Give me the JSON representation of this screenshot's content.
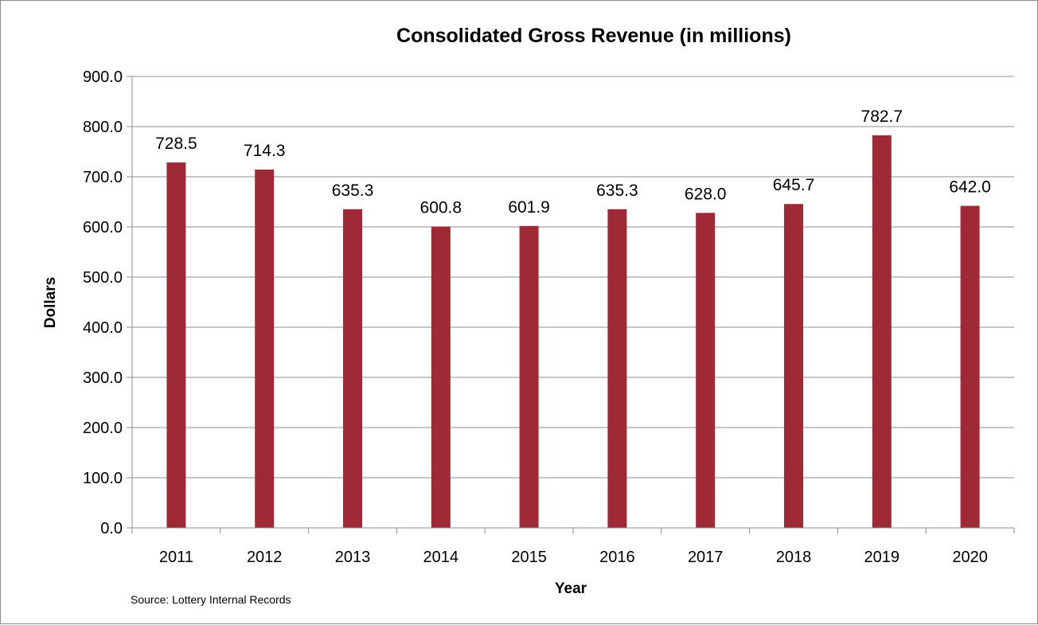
{
  "chart_data": {
    "type": "bar",
    "title": "Consolidated Gross Revenue (in millions)",
    "xlabel": "Year",
    "ylabel": "Dollars",
    "categories": [
      "2011",
      "2012",
      "2013",
      "2014",
      "2015",
      "2016",
      "2017",
      "2018",
      "2019",
      "2020"
    ],
    "values": [
      728.5,
      714.3,
      635.3,
      600.8,
      601.9,
      635.3,
      628.0,
      645.7,
      782.7,
      642.0
    ],
    "data_labels": [
      "728.5",
      "714.3",
      "635.3",
      "600.8",
      "601.9",
      "635.3",
      "628.0",
      "645.7",
      "782.7",
      "642.0"
    ],
    "ylim": [
      0,
      900
    ],
    "yticks": [
      "0.0",
      "100.0",
      "200.0",
      "300.0",
      "400.0",
      "500.0",
      "600.0",
      "700.0",
      "800.0",
      "900.0"
    ],
    "grid": true,
    "legend": "none",
    "bar_color": "#9e2a38",
    "source_note": "Source:  Lottery Internal Records"
  }
}
